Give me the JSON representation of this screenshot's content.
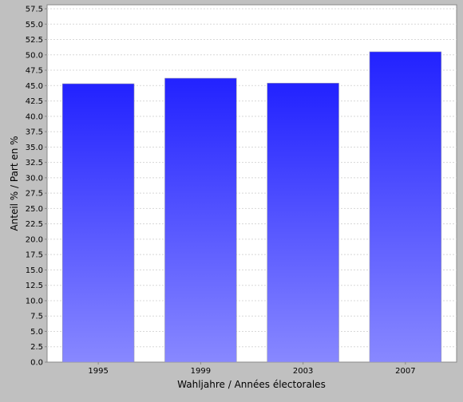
{
  "chart_data": {
    "type": "bar",
    "categories": [
      "1995",
      "1999",
      "2003",
      "2007"
    ],
    "values": [
      45.3,
      46.2,
      45.4,
      50.5
    ],
    "xlabel": "Wahljahre / Années électorales",
    "ylabel": "Anteil % / Part en %",
    "ylim": [
      0,
      57.5
    ],
    "ytick_step": 2.5,
    "yticks": [
      "0.0",
      "2.5",
      "5.0",
      "7.5",
      "10.0",
      "12.5",
      "15.0",
      "17.5",
      "20.0",
      "22.5",
      "25.0",
      "27.5",
      "30.0",
      "32.5",
      "35.0",
      "37.5",
      "40.0",
      "42.5",
      "45.0",
      "47.5",
      "50.0",
      "52.5",
      "55.0",
      "57.5"
    ],
    "grid": true,
    "legend": "none",
    "colors": {
      "background": "#c0c0c0",
      "plot_background": "#ffffff",
      "bar_top": "#2222ff",
      "bar_bottom": "#8888ff",
      "grid": "#d8d8d8",
      "axis": "#888888",
      "text": "#000000"
    }
  }
}
